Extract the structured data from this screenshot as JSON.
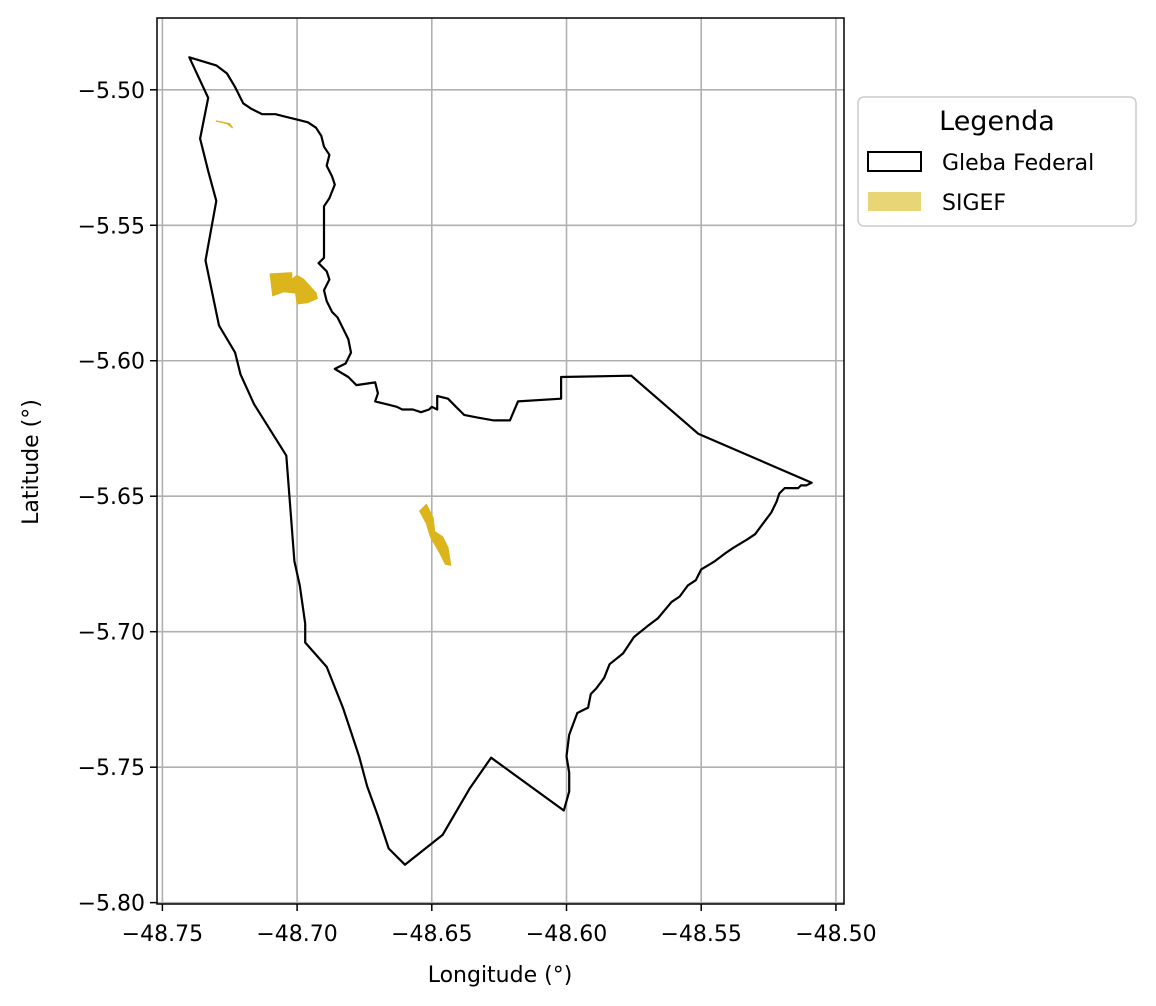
{
  "chart_data": {
    "type": "map",
    "xlabel": "Longitude (°)",
    "ylabel": "Latitude (°)",
    "xlim": [
      -48.752,
      -48.497
    ],
    "ylim": [
      -5.8005,
      -5.4735
    ],
    "xticks": [
      -48.75,
      -48.7,
      -48.65,
      -48.6,
      -48.55,
      -48.5
    ],
    "xtick_labels": [
      "−48.75",
      "−48.70",
      "−48.65",
      "−48.60",
      "−48.55",
      "−48.50"
    ],
    "yticks": [
      -5.5,
      -5.55,
      -5.6,
      -5.65,
      -5.7,
      -5.75,
      -5.8
    ],
    "ytick_labels": [
      "−5.50",
      "−5.55",
      "−5.60",
      "−5.65",
      "−5.70",
      "−5.75",
      "−5.80"
    ],
    "grid": true,
    "legend": {
      "title": "Legenda",
      "placement": "outside-right",
      "entries": [
        {
          "label": "Gleba Federal",
          "style": "outline",
          "edge_color": "#000000",
          "fill_color": "#ffffff"
        },
        {
          "label": "SIGEF",
          "style": "fill",
          "fill_color": "#e8d575"
        }
      ]
    },
    "series": [
      {
        "name": "Gleba Federal",
        "kind": "polygon-outline",
        "color": "#000000",
        "coordinates": [
          [
            -48.74,
            -5.488
          ],
          [
            -48.73,
            -5.491
          ],
          [
            -48.726,
            -5.494
          ],
          [
            -48.723,
            -5.499
          ],
          [
            -48.72,
            -5.505
          ],
          [
            -48.717,
            -5.507
          ],
          [
            -48.713,
            -5.509
          ],
          [
            -48.708,
            -5.509
          ],
          [
            -48.704,
            -5.51
          ],
          [
            -48.7,
            -5.511
          ],
          [
            -48.696,
            -5.512
          ],
          [
            -48.693,
            -5.514
          ],
          [
            -48.691,
            -5.517
          ],
          [
            -48.69,
            -5.521
          ],
          [
            -48.688,
            -5.524
          ],
          [
            -48.689,
            -5.528
          ],
          [
            -48.687,
            -5.532
          ],
          [
            -48.686,
            -5.535
          ],
          [
            -48.688,
            -5.54
          ],
          [
            -48.69,
            -5.543
          ],
          [
            -48.69,
            -5.547
          ],
          [
            -48.69,
            -5.553
          ],
          [
            -48.69,
            -5.558
          ],
          [
            -48.69,
            -5.562
          ],
          [
            -48.692,
            -5.564
          ],
          [
            -48.689,
            -5.567
          ],
          [
            -48.688,
            -5.57
          ],
          [
            -48.69,
            -5.574
          ],
          [
            -48.689,
            -5.578
          ],
          [
            -48.687,
            -5.582
          ],
          [
            -48.685,
            -5.584
          ],
          [
            -48.683,
            -5.588
          ],
          [
            -48.681,
            -5.592
          ],
          [
            -48.68,
            -5.597
          ],
          [
            -48.682,
            -5.601
          ],
          [
            -48.686,
            -5.603
          ],
          [
            -48.681,
            -5.606
          ],
          [
            -48.678,
            -5.609
          ],
          [
            -48.671,
            -5.608
          ],
          [
            -48.67,
            -5.612
          ],
          [
            -48.671,
            -5.615
          ],
          [
            -48.667,
            -5.616
          ],
          [
            -48.663,
            -5.617
          ],
          [
            -48.661,
            -5.618
          ],
          [
            -48.657,
            -5.618
          ],
          [
            -48.654,
            -5.619
          ],
          [
            -48.651,
            -5.618
          ],
          [
            -48.65,
            -5.617
          ],
          [
            -48.648,
            -5.618
          ],
          [
            -48.648,
            -5.613
          ],
          [
            -48.644,
            -5.614
          ],
          [
            -48.641,
            -5.617
          ],
          [
            -48.638,
            -5.62
          ],
          [
            -48.633,
            -5.621
          ],
          [
            -48.627,
            -5.622
          ],
          [
            -48.624,
            -5.622
          ],
          [
            -48.621,
            -5.622
          ],
          [
            -48.618,
            -5.615
          ],
          [
            -48.602,
            -5.614
          ],
          [
            -48.602,
            -5.606
          ],
          [
            -48.576,
            -5.6055
          ],
          [
            -48.551,
            -5.627
          ],
          [
            -48.509,
            -5.645
          ],
          [
            -48.511,
            -5.646
          ],
          [
            -48.513,
            -5.646
          ],
          [
            -48.514,
            -5.647
          ],
          [
            -48.519,
            -5.647
          ],
          [
            -48.521,
            -5.649
          ],
          [
            -48.522,
            -5.652
          ],
          [
            -48.524,
            -5.656
          ],
          [
            -48.527,
            -5.66
          ],
          [
            -48.53,
            -5.664
          ],
          [
            -48.533,
            -5.666
          ],
          [
            -48.538,
            -5.669
          ],
          [
            -48.541,
            -5.671
          ],
          [
            -48.545,
            -5.674
          ],
          [
            -48.55,
            -5.677
          ],
          [
            -48.552,
            -5.681
          ],
          [
            -48.555,
            -5.683
          ],
          [
            -48.558,
            -5.687
          ],
          [
            -48.561,
            -5.689
          ],
          [
            -48.566,
            -5.695
          ],
          [
            -48.57,
            -5.698
          ],
          [
            -48.575,
            -5.702
          ],
          [
            -48.579,
            -5.708
          ],
          [
            -48.584,
            -5.712
          ],
          [
            -48.586,
            -5.717
          ],
          [
            -48.589,
            -5.721
          ],
          [
            -48.591,
            -5.723
          ],
          [
            -48.592,
            -5.728
          ],
          [
            -48.596,
            -5.73
          ],
          [
            -48.599,
            -5.738
          ],
          [
            -48.6,
            -5.746
          ],
          [
            -48.599,
            -5.752
          ],
          [
            -48.599,
            -5.759
          ],
          [
            -48.601,
            -5.766
          ],
          [
            -48.628,
            -5.7465
          ],
          [
            -48.636,
            -5.758
          ],
          [
            -48.646,
            -5.775
          ],
          [
            -48.66,
            -5.786
          ],
          [
            -48.666,
            -5.78
          ],
          [
            -48.67,
            -5.768
          ],
          [
            -48.674,
            -5.757
          ],
          [
            -48.677,
            -5.746
          ],
          [
            -48.68,
            -5.737
          ],
          [
            -48.683,
            -5.728
          ],
          [
            -48.689,
            -5.713
          ],
          [
            -48.697,
            -5.704
          ],
          [
            -48.697,
            -5.697
          ],
          [
            -48.699,
            -5.683
          ],
          [
            -48.701,
            -5.674
          ],
          [
            -48.702,
            -5.661
          ],
          [
            -48.704,
            -5.635
          ],
          [
            -48.716,
            -5.616
          ],
          [
            -48.721,
            -5.605
          ],
          [
            -48.723,
            -5.597
          ],
          [
            -48.729,
            -5.587
          ],
          [
            -48.734,
            -5.563
          ],
          [
            -48.73,
            -5.541
          ],
          [
            -48.733,
            -5.53
          ],
          [
            -48.736,
            -5.518
          ],
          [
            -48.733,
            -5.503
          ],
          [
            -48.74,
            -5.488
          ]
        ]
      },
      {
        "name": "SIGEF",
        "kind": "polygon-fill",
        "color": "#dcb51d",
        "parts": [
          [
            [
              -48.73,
              -5.5115
            ],
            [
              -48.725,
              -5.5125
            ],
            [
              -48.724,
              -5.514
            ],
            [
              -48.726,
              -5.5125
            ]
          ],
          [
            [
              -48.71,
              -5.568
            ],
            [
              -48.702,
              -5.5675
            ],
            [
              -48.702,
              -5.57
            ],
            [
              -48.7,
              -5.5685
            ],
            [
              -48.6975,
              -5.57
            ],
            [
              -48.693,
              -5.575
            ],
            [
              -48.6925,
              -5.577
            ],
            [
              -48.696,
              -5.5785
            ],
            [
              -48.7,
              -5.579
            ],
            [
              -48.7005,
              -5.575
            ],
            [
              -48.705,
              -5.5745
            ],
            [
              -48.709,
              -5.576
            ]
          ],
          [
            [
              -48.6545,
              -5.6555
            ],
            [
              -48.652,
              -5.653
            ],
            [
              -48.6495,
              -5.658
            ],
            [
              -48.649,
              -5.663
            ],
            [
              -48.646,
              -5.665
            ],
            [
              -48.644,
              -5.669
            ],
            [
              -48.643,
              -5.6755
            ],
            [
              -48.645,
              -5.675
            ],
            [
              -48.647,
              -5.671
            ],
            [
              -48.6505,
              -5.665
            ],
            [
              -48.652,
              -5.66
            ]
          ]
        ]
      }
    ]
  }
}
